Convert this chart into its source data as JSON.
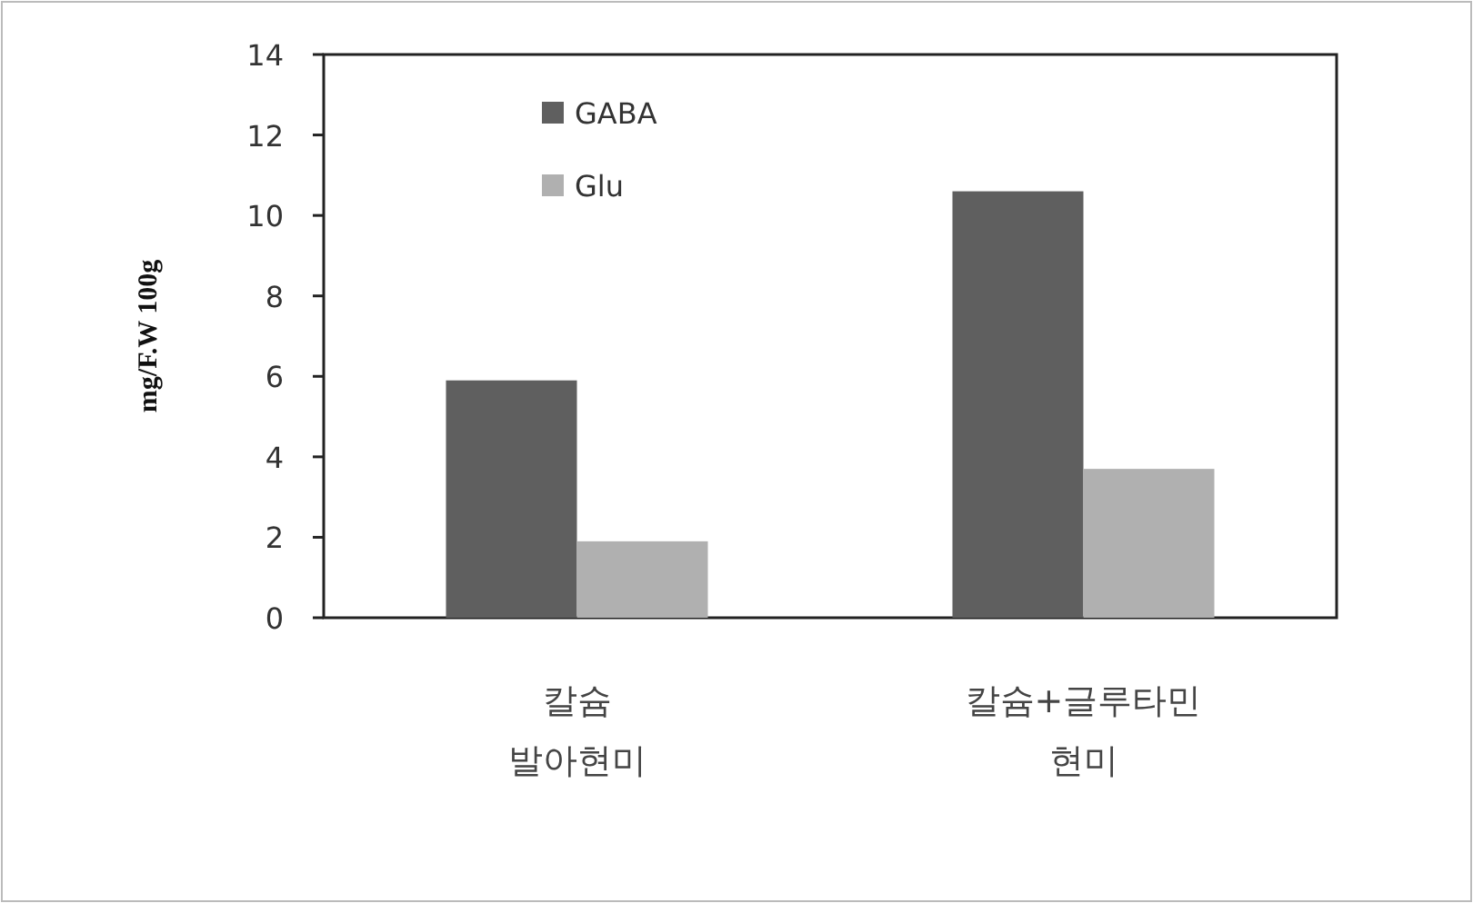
{
  "chart_data": {
    "type": "bar",
    "ylabel": "mg/F.W 100g",
    "categories": [
      "칼슘\n발아현미",
      "칼슘+글루타민\n현미"
    ],
    "series": [
      {
        "name": "GABA",
        "color": "#5f5f5f",
        "values": [
          5.9,
          10.6
        ]
      },
      {
        "name": "Glu",
        "color": "#b0b0b0",
        "values": [
          1.9,
          3.7
        ]
      }
    ],
    "ylim": [
      0,
      14
    ],
    "yticks": [
      0,
      2,
      4,
      6,
      8,
      10,
      12,
      14
    ],
    "grid": false,
    "legend": "top left"
  }
}
